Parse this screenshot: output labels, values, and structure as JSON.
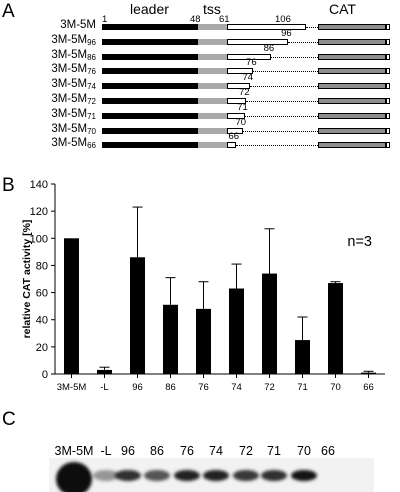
{
  "panelA": {
    "letter": "A",
    "headers": {
      "leader": "leader",
      "tss": "tss",
      "cat": "CAT"
    },
    "positions": [
      "1",
      "48",
      "61",
      "106"
    ],
    "constructs": [
      {
        "base": "3M-5M",
        "sub": "",
        "end": 106,
        "label": ""
      },
      {
        "base": "3M-5M",
        "sub": "96",
        "end": 96,
        "label": "96"
      },
      {
        "base": "3M-5M",
        "sub": "86",
        "end": 86,
        "label": "86"
      },
      {
        "base": "3M-5M",
        "sub": "76",
        "end": 76,
        "label": "76"
      },
      {
        "base": "3M-5M",
        "sub": "74",
        "end": 74,
        "label": "74"
      },
      {
        "base": "3M-5M",
        "sub": "72",
        "end": 72,
        "label": "72"
      },
      {
        "base": "3M-5M",
        "sub": "71",
        "end": 71,
        "label": "71"
      },
      {
        "base": "3M-5M",
        "sub": "70",
        "end": 70,
        "label": "70"
      },
      {
        "base": "3M-5M",
        "sub": "66",
        "end": 66,
        "label": "66"
      }
    ],
    "colors": {
      "leader": "#000000",
      "tss": "#a9a9a9",
      "cat": "#8f8f8f"
    }
  },
  "panelB": {
    "letter": "B",
    "annotation": "n=3"
  },
  "chart_data": {
    "type": "bar",
    "categories": [
      "3M-5M",
      "-L",
      "96",
      "86",
      "76",
      "74",
      "72",
      "71",
      "70",
      "66"
    ],
    "values": [
      100,
      3,
      86,
      51,
      48,
      63,
      74,
      25,
      67,
      1
    ],
    "errors": [
      0,
      2,
      37,
      20,
      20,
      18,
      33,
      17,
      1,
      1
    ],
    "title": "",
    "xlabel": "",
    "ylabel": "relative CAT activity [%]",
    "ylim": [
      0,
      140
    ],
    "yticks": [
      0,
      20,
      40,
      60,
      80,
      100,
      120,
      140
    ],
    "bar_color": "#000000",
    "grid": false
  },
  "panelC": {
    "letter": "C",
    "lanes": [
      "3M-5M",
      "-L",
      "96",
      "86",
      "76",
      "74",
      "72",
      "71",
      "70",
      "66"
    ],
    "band_intensity": [
      1.0,
      0.05,
      0.75,
      0.5,
      0.85,
      0.85,
      0.7,
      0.75,
      0.95,
      0.0
    ]
  }
}
